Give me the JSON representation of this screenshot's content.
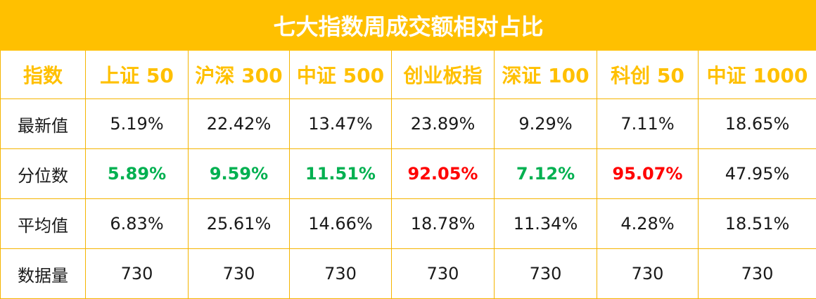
{
  "chart_data": {
    "type": "table",
    "title": "七大指数周成交额相对占比",
    "corner_label": "指数",
    "columns": [
      "上证 50",
      "沪深 300",
      "中证 500",
      "创业板指",
      "深证 100",
      "科创 50",
      "中证 1000"
    ],
    "rows": [
      {
        "label": "最新值",
        "values": [
          "5.19%",
          "22.42%",
          "13.47%",
          "23.89%",
          "9.29%",
          "7.11%",
          "18.65%"
        ],
        "colors": [
          "",
          "",
          "",
          "",
          "",
          "",
          ""
        ]
      },
      {
        "label": "分位数",
        "values": [
          "5.89%",
          "9.59%",
          "11.51%",
          "92.05%",
          "7.12%",
          "95.07%",
          "47.95%"
        ],
        "colors": [
          "green",
          "green",
          "green",
          "red",
          "green",
          "red",
          ""
        ]
      },
      {
        "label": "平均值",
        "values": [
          "6.83%",
          "25.61%",
          "14.66%",
          "18.78%",
          "11.34%",
          "4.28%",
          "18.51%"
        ],
        "colors": [
          "",
          "",
          "",
          "",
          "",
          "",
          ""
        ]
      },
      {
        "label": "数据量",
        "values": [
          "730",
          "730",
          "730",
          "730",
          "730",
          "730",
          "730"
        ],
        "colors": [
          "",
          "",
          "",
          "",
          "",
          "",
          ""
        ]
      }
    ]
  },
  "theme": {
    "accent": "#ffc000",
    "green": "#00b050",
    "red": "#ff0000"
  }
}
